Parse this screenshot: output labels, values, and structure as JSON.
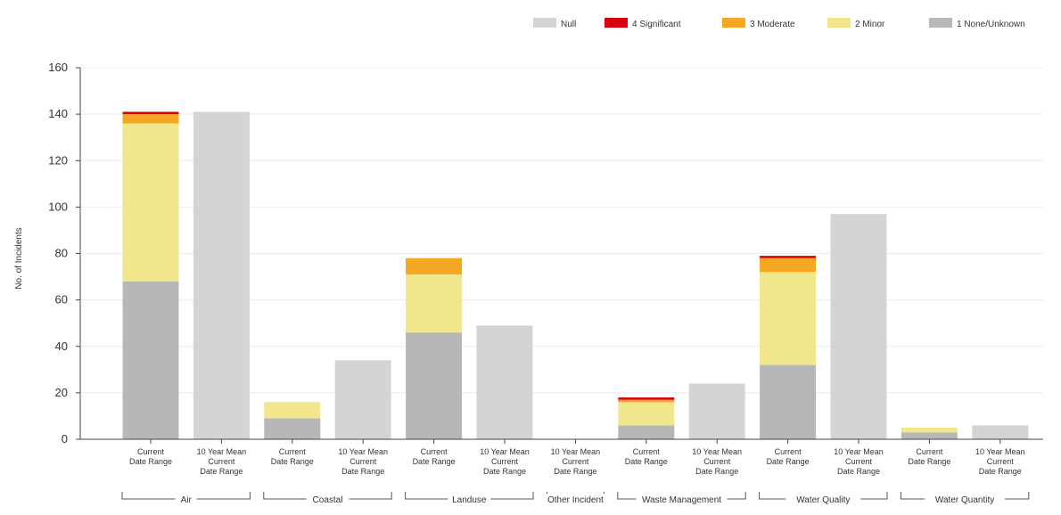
{
  "chart_data": {
    "type": "bar",
    "stacked": true,
    "ylabel": "No. of Incidents",
    "ylim": [
      0,
      160
    ],
    "y_ticks": [
      0,
      20,
      40,
      60,
      80,
      100,
      120,
      140,
      160
    ],
    "grid": true,
    "legend_position": "top-right",
    "groups": [
      {
        "label": "Air",
        "count": 2
      },
      {
        "label": "Coastal",
        "count": 2
      },
      {
        "label": "Landuse",
        "count": 2
      },
      {
        "label": "Other Incident",
        "count": 1
      },
      {
        "label": "Waste Management",
        "count": 2
      },
      {
        "label": "Water Quality",
        "count": 2
      },
      {
        "label": "Water Quantity",
        "count": 2
      }
    ],
    "categories": [
      [
        "Current",
        "Date Range"
      ],
      [
        "10 Year Mean",
        "Current",
        "Date Range"
      ],
      [
        "Current",
        "Date Range"
      ],
      [
        "10 Year Mean",
        "Current",
        "Date Range"
      ],
      [
        "Current",
        "Date Range"
      ],
      [
        "10 Year Mean",
        "Current",
        "Date Range"
      ],
      [
        "10 Year Mean",
        "Current",
        "Date Range"
      ],
      [
        "Current",
        "Date Range"
      ],
      [
        "10 Year Mean",
        "Current",
        "Date Range"
      ],
      [
        "Current",
        "Date Range"
      ],
      [
        "10 Year Mean",
        "Current",
        "Date Range"
      ],
      [
        "Current",
        "Date Range"
      ],
      [
        "10 Year Mean",
        "Current",
        "Date Range"
      ]
    ],
    "series": [
      {
        "name": "1 None/Unknown",
        "color": "#b7b7b7",
        "values": [
          68,
          0,
          9,
          0,
          46,
          0,
          0,
          6,
          0,
          32,
          0,
          3,
          0
        ]
      },
      {
        "name": "2 Minor",
        "color": "#f0e68c",
        "values": [
          68,
          0,
          7,
          0,
          25,
          0,
          0,
          10,
          0,
          40,
          0,
          2,
          0
        ]
      },
      {
        "name": "3 Moderate",
        "color": "#f5a623",
        "values": [
          4,
          0,
          0,
          0,
          7,
          0,
          0,
          1,
          0,
          6,
          0,
          0,
          0
        ]
      },
      {
        "name": "4 Significant",
        "color": "#d9000d",
        "values": [
          1,
          0,
          0,
          0,
          0,
          0,
          0,
          1,
          0,
          1,
          0,
          0,
          0
        ]
      },
      {
        "name": "Null",
        "color": "#d4d4d4",
        "values": [
          0,
          141,
          0,
          34,
          0,
          49,
          0,
          0,
          24,
          0,
          97,
          0,
          6
        ]
      }
    ],
    "legend_order": [
      "Null",
      "4 Significant",
      "3 Moderate",
      "2 Minor",
      "1 None/Unknown"
    ]
  }
}
